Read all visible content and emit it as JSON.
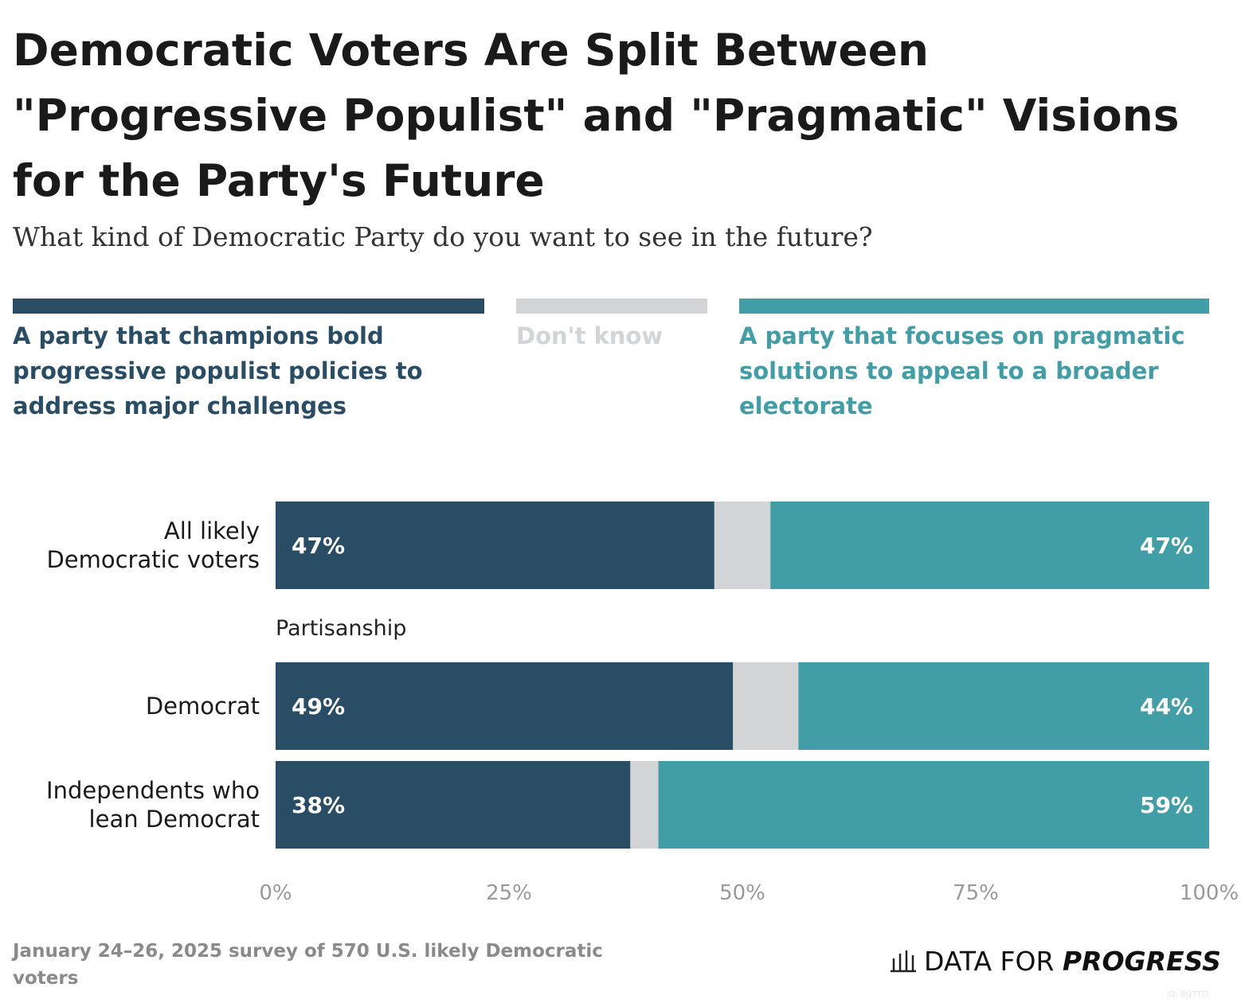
{
  "chart_data": {
    "type": "stacked-bar-horizontal",
    "title": "Democratic Voters Are Split Between \"Progressive Populist\" and \"Pragmatic\" Visions for the Party's Future",
    "subtitle": "What kind of Democratic Party do you want to see in the future?",
    "categories": [
      "All likely Democratic voters",
      "Democrat",
      "Independents who lean Democrat"
    ],
    "group_label": "Partisanship",
    "series": [
      {
        "name": "A party that champions bold progressive populist policies to address major challenges",
        "color": "#2a4d66",
        "values": [
          47,
          49,
          38
        ],
        "value_labels": [
          "47%",
          "49%",
          "38%"
        ]
      },
      {
        "name": "Don't know",
        "color": "#d3d4d6",
        "values": [
          6,
          7,
          3
        ]
      },
      {
        "name": "A party that focuses on pragmatic solutions to appeal to a broader electorate",
        "color": "#429ea6",
        "values": [
          47,
          44,
          59
        ],
        "value_labels": [
          "47%",
          "44%",
          "59%"
        ]
      }
    ],
    "xlim": [
      0,
      100
    ],
    "xticks": [
      {
        "value": 0,
        "label": "0%"
      },
      {
        "value": 25,
        "label": "25%"
      },
      {
        "value": 50,
        "label": "50%"
      },
      {
        "value": 75,
        "label": "75%"
      },
      {
        "value": 100,
        "label": "100%"
      }
    ],
    "source": "January 24–26, 2025 survey of 570 U.S. likely Democratic voters",
    "brand": {
      "prefix": "DATA FOR",
      "name": "PROGRESS"
    },
    "id_label": "ID: 8Q7TJ2"
  }
}
